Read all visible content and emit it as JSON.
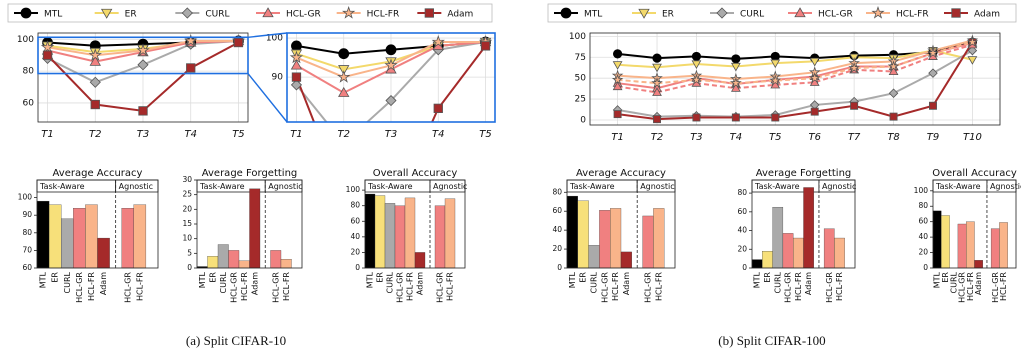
{
  "captions": [
    "(a) Split CIFAR-10",
    "(b) Split CIFAR-100"
  ],
  "chart_data": [
    {
      "type": "line",
      "categories": [
        "T1",
        "T2",
        "T3",
        "T4",
        "T5"
      ],
      "ylim": [
        48,
        104
      ],
      "yticks": [
        60,
        80,
        100
      ],
      "grid": true,
      "series": [
        {
          "name": "MTL",
          "color": "#000000",
          "marker": "circle",
          "values": [
            98,
            96,
            97,
            98,
            99
          ]
        },
        {
          "name": "ER",
          "color": "#f3d96b",
          "marker": "triangle-down",
          "values": [
            96,
            92,
            94,
            98,
            99
          ]
        },
        {
          "name": "CURL",
          "color": "#aaaaaa",
          "marker": "diamond",
          "values": [
            88,
            73,
            84,
            97,
            99
          ]
        },
        {
          "name": "HCL-GR",
          "color": "#f08080",
          "marker": "triangle-up",
          "values": [
            93,
            86,
            92,
            98,
            99
          ]
        },
        {
          "name": "HCL-FR",
          "color": "#f9b48a",
          "marker": "star",
          "values": [
            95,
            90,
            93,
            99,
            99
          ]
        },
        {
          "name": "Adam",
          "color": "#a52a2a",
          "marker": "square",
          "values": [
            90,
            59,
            55,
            82,
            98
          ]
        }
      ],
      "inset": {
        "ylim": [
          78.5,
          101.3
        ],
        "yticks": [
          90,
          100
        ],
        "color": "#1f6fe0"
      }
    },
    {
      "type": "bar",
      "title": "Average Accuracy",
      "ylim": [
        60,
        110
      ],
      "yticks": [
        60,
        70,
        80,
        90,
        100
      ],
      "groups": [
        {
          "label": "Task-Aware",
          "categories": [
            "MTL",
            "ER",
            "CURL",
            "HCL-GR",
            "HCL-FR",
            "Adam"
          ],
          "values": [
            98,
            96,
            88,
            94,
            96,
            77
          ],
          "colors": [
            "#000000",
            "#f7e07a",
            "#aaaaaa",
            "#f08080",
            "#f9b48a",
            "#a52a2a"
          ]
        },
        {
          "label": "Agnostic",
          "categories": [
            "HCL-GR",
            "HCL-FR"
          ],
          "values": [
            94,
            96
          ],
          "colors": [
            "#f08080",
            "#f9b48a"
          ]
        }
      ]
    },
    {
      "type": "bar",
      "title": "Average Forgetting",
      "ylim": [
        0,
        30
      ],
      "yticks": [
        0,
        5,
        10,
        15,
        20,
        25,
        30
      ],
      "groups": [
        {
          "label": "Task-Aware",
          "categories": [
            "MTL",
            "ER",
            "CURL",
            "HCL-GR",
            "HCL-FR",
            "Adam"
          ],
          "values": [
            0.5,
            4,
            8,
            6,
            2.5,
            27
          ],
          "colors": [
            "#000000",
            "#f7e07a",
            "#aaaaaa",
            "#f08080",
            "#f9b48a",
            "#a52a2a"
          ]
        },
        {
          "label": "Agnostic",
          "categories": [
            "HCL-GR",
            "HCL-FR"
          ],
          "values": [
            6,
            3
          ],
          "colors": [
            "#f08080",
            "#f9b48a"
          ]
        }
      ]
    },
    {
      "type": "bar",
      "title": "Overall Accuracy",
      "ylim": [
        0,
        113
      ],
      "yticks": [
        0,
        20,
        40,
        60,
        80,
        100
      ],
      "groups": [
        {
          "label": "Task-Aware",
          "categories": [
            "MTL",
            "ER",
            "CURL",
            "HCL-GR",
            "HCL-FR",
            "Adam"
          ],
          "values": [
            95,
            93,
            83,
            80,
            90,
            20
          ],
          "colors": [
            "#000000",
            "#f7e07a",
            "#aaaaaa",
            "#f08080",
            "#f9b48a",
            "#a52a2a"
          ]
        },
        {
          "label": "Agnostic",
          "categories": [
            "HCL-GR",
            "HCL-FR"
          ],
          "values": [
            80,
            89
          ],
          "colors": [
            "#f08080",
            "#f9b48a"
          ]
        }
      ]
    },
    {
      "type": "line",
      "categories": [
        "T1",
        "T2",
        "T3",
        "T4",
        "T5",
        "T6",
        "T7",
        "T8",
        "T9",
        "T10"
      ],
      "ylim": [
        -6,
        104
      ],
      "yticks": [
        0,
        25,
        50,
        75,
        100
      ],
      "grid": true,
      "series": [
        {
          "name": "MTL",
          "color": "#000000",
          "marker": "circle",
          "values": [
            79,
            74,
            76,
            73,
            76,
            74,
            77,
            78,
            81,
            93
          ]
        },
        {
          "name": "ER",
          "color": "#f3d96b",
          "marker": "triangle-down",
          "values": [
            66,
            63,
            67,
            64,
            68,
            70,
            75,
            74,
            83,
            72
          ]
        },
        {
          "name": "CURL",
          "color": "#aaaaaa",
          "marker": "diamond",
          "values": [
            12,
            4,
            5,
            4,
            6,
            18,
            22,
            32,
            56,
            83
          ]
        },
        {
          "name": "HCL-GR",
          "color": "#f08080",
          "marker": "triangle-up",
          "values": [
            44,
            38,
            50,
            43,
            48,
            52,
            64,
            64,
            80,
            92
          ]
        },
        {
          "name": "HCL-FR",
          "color": "#f9b48a",
          "marker": "star",
          "values": [
            53,
            50,
            53,
            49,
            52,
            57,
            68,
            70,
            83,
            95
          ]
        },
        {
          "name": "Adam",
          "color": "#a52a2a",
          "marker": "square",
          "values": [
            7,
            1,
            3,
            3,
            3,
            10,
            17,
            4,
            17,
            93
          ]
        },
        {
          "name": "HCL-GR",
          "color": "#f08080",
          "marker": "triangle-up",
          "dashed": true,
          "values": [
            40,
            33,
            44,
            38,
            42,
            45,
            60,
            58,
            76,
            90
          ]
        },
        {
          "name": "HCL-FR",
          "color": "#f9b48a",
          "marker": "star",
          "dashed": true,
          "values": [
            48,
            44,
            48,
            44,
            47,
            50,
            62,
            64,
            80,
            93
          ]
        }
      ]
    },
    {
      "type": "bar",
      "title": "Average Accuracy",
      "ylim": [
        0,
        93
      ],
      "yticks": [
        0,
        20,
        40,
        60,
        80
      ],
      "groups": [
        {
          "label": "Task-Aware",
          "categories": [
            "MTL",
            "ER",
            "CURL",
            "HCL-GR",
            "HCL-FR",
            "Adam"
          ],
          "values": [
            76,
            71,
            24,
            61,
            63,
            17
          ],
          "colors": [
            "#000000",
            "#f7e07a",
            "#aaaaaa",
            "#f08080",
            "#f9b48a",
            "#a52a2a"
          ]
        },
        {
          "label": "Agnostic",
          "categories": [
            "HCL-GR",
            "HCL-FR"
          ],
          "values": [
            55,
            63
          ],
          "colors": [
            "#f08080",
            "#f9b48a"
          ]
        }
      ]
    },
    {
      "type": "bar",
      "title": "Average Forgetting",
      "ylim": [
        0,
        94
      ],
      "yticks": [
        0,
        20,
        40,
        60,
        80
      ],
      "groups": [
        {
          "label": "Task-Aware",
          "categories": [
            "MTL",
            "ER",
            "CURL",
            "HCL-GR",
            "HCL-FR",
            "Adam"
          ],
          "values": [
            9,
            18,
            65,
            37,
            32,
            86
          ],
          "colors": [
            "#000000",
            "#f7e07a",
            "#aaaaaa",
            "#f08080",
            "#f9b48a",
            "#a52a2a"
          ]
        },
        {
          "label": "Agnostic",
          "categories": [
            "HCL-GR",
            "HCL-FR"
          ],
          "values": [
            42,
            32
          ],
          "colors": [
            "#f08080",
            "#f9b48a"
          ]
        }
      ]
    },
    {
      "type": "bar",
      "title": "Overall Accuracy",
      "ylim": [
        0,
        114
      ],
      "yticks": [
        0,
        20,
        40,
        60,
        80,
        100
      ],
      "groups": [
        {
          "label": "Task-Aware",
          "categories": [
            "MTL",
            "ER",
            "CURL",
            "HCL-GR",
            "HCL-FR",
            "Adam"
          ],
          "values": [
            74,
            68,
            null,
            57,
            60,
            10
          ],
          "colors": [
            "#000000",
            "#f7e07a",
            "#aaaaaa",
            "#f08080",
            "#f9b48a",
            "#a52a2a"
          ]
        },
        {
          "label": "Agnostic",
          "categories": [
            "HCL-GR",
            "HCL-FR"
          ],
          "values": [
            51,
            59
          ],
          "colors": [
            "#f08080",
            "#f9b48a"
          ]
        }
      ]
    }
  ]
}
